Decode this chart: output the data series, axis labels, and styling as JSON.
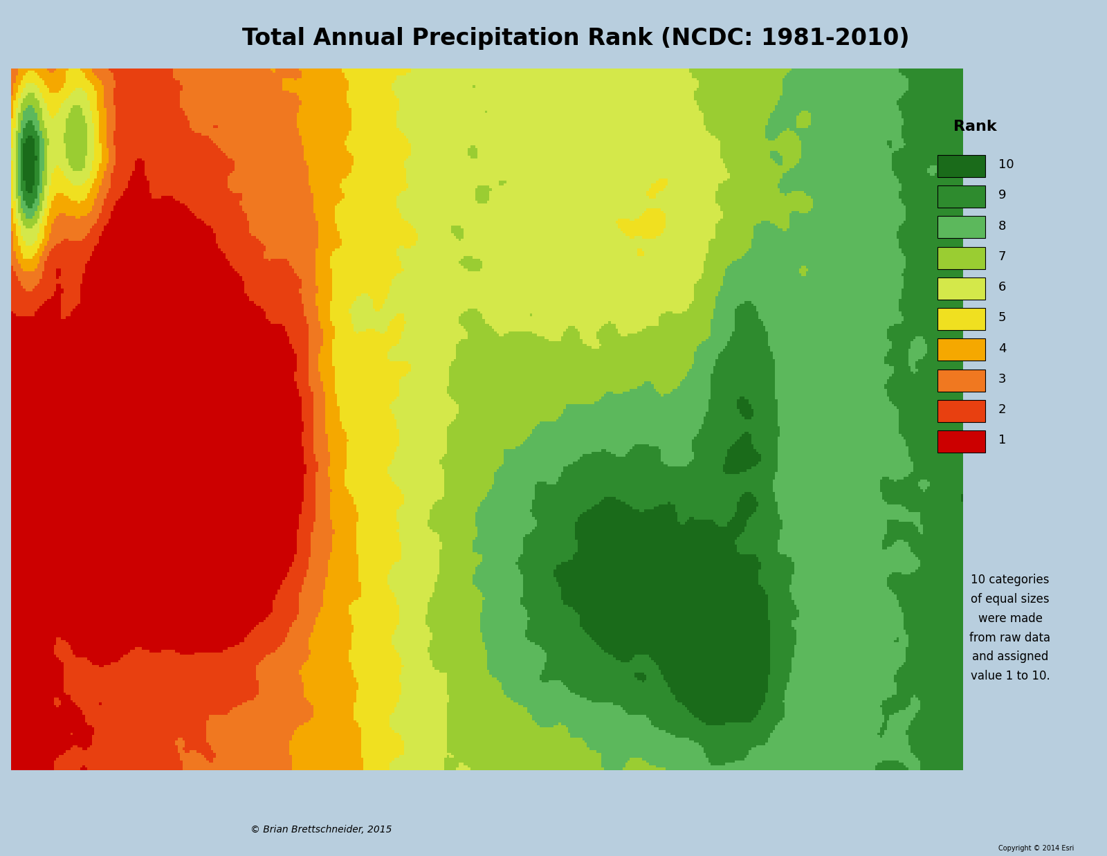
{
  "title": "Total Annual Precipitation Rank (NCDC: 1981-2010)",
  "title_fontsize": 24,
  "title_bg": "#ccd8e8",
  "rank_colors": {
    "10": "#1a6b1a",
    "9": "#2e8b2e",
    "8": "#5cb85c",
    "7": "#9acd32",
    "6": "#d4e84a",
    "5": "#f0e020",
    "4": "#f5a800",
    "3": "#f07820",
    "2": "#e84010",
    "1": "#cc0000"
  },
  "legend_title": "Rank",
  "legend_title_fontsize": 16,
  "legend_fontsize": 13,
  "note_text": "10 categories\nof equal sizes\nwere made\nfrom raw data\nand assigned\nvalue 1 to 10.",
  "note_fontsize": 12,
  "copyright_main": "© Brian Brettschneider, 2015",
  "copyright_esri": "Copyright © 2014 Esri",
  "background_ocean": "#a8c8e8",
  "background_fig": "#b8cede",
  "background_land": "#d8cfc0"
}
